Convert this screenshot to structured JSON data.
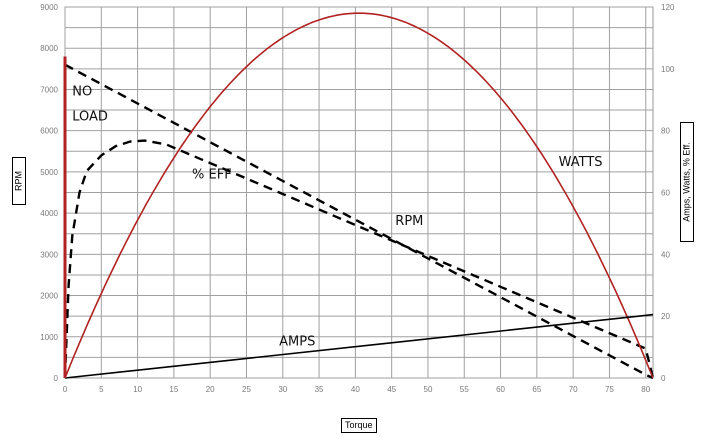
{
  "chart_data": {
    "type": "line",
    "xlabel": "Torque",
    "ylabel": "RPM",
    "y2label": "Amps, Watts, % Eff.",
    "xlim": [
      0,
      81
    ],
    "ylim": [
      0,
      9000
    ],
    "y2lim": [
      0,
      120
    ],
    "x_ticks": [
      "0",
      "5",
      "10",
      "15",
      "20",
      "25",
      "30",
      "35",
      "40",
      "45",
      "50",
      "55",
      "60",
      "65",
      "70",
      "75",
      "80"
    ],
    "y_ticks": [
      "0",
      "1000",
      "2000",
      "3000",
      "4000",
      "5000",
      "6000",
      "7000",
      "8000",
      "9000"
    ],
    "y2_ticks": [
      "0",
      "20",
      "40",
      "60",
      "80",
      "100",
      "120"
    ],
    "grid": true,
    "series": [
      {
        "name": "RPM",
        "axis": "left",
        "color": "#000000",
        "style": "dashed",
        "x": [
          0,
          10,
          20,
          30,
          40,
          50,
          60,
          70,
          80,
          81
        ],
        "y": [
          7600,
          6660,
          5720,
          4780,
          3840,
          2900,
          1960,
          1020,
          80,
          0
        ]
      },
      {
        "name": "% EFF",
        "axis": "right",
        "color": "#000000",
        "style": "dashed",
        "x": [
          0,
          0.5,
          1,
          2,
          3,
          5,
          7,
          9,
          11,
          14,
          17,
          20,
          30,
          40,
          50,
          60,
          70,
          80,
          81
        ],
        "y": [
          0,
          30,
          46,
          60,
          67,
          72,
          75,
          76.5,
          76.8,
          75.5,
          72.5,
          69.5,
          59.5,
          49.5,
          39.5,
          29.5,
          19.5,
          9.5,
          0
        ]
      },
      {
        "name": "WATTS",
        "axis": "right",
        "color": "#b22222",
        "style": "solid",
        "x": [
          0,
          5,
          10,
          15,
          20,
          25,
          30,
          35,
          40.5,
          45,
          50,
          55,
          60,
          65,
          70,
          75,
          81
        ],
        "y": [
          0,
          26.8,
          50.3,
          70.6,
          87.7,
          101.6,
          112.3,
          119.7,
          117.5,
          122.3,
          118.4,
          111.2,
          100.7,
          86.9,
          69.8,
          49.5,
          0
        ]
      },
      {
        "name": "AMPS",
        "axis": "right",
        "color": "#000000",
        "style": "solid",
        "x": [
          0,
          81
        ],
        "y": [
          0,
          20.5
        ]
      },
      {
        "name": "NO LOAD",
        "axis": "left",
        "color": "#b22222",
        "style": "solid",
        "x": [
          0,
          0
        ],
        "y": [
          0,
          7800
        ]
      }
    ],
    "annotations": [
      {
        "id": "noload1",
        "text": "NO",
        "x": 1,
        "y": 6850,
        "axis": "left"
      },
      {
        "id": "noload2",
        "text": "LOAD",
        "x": 1,
        "y": 6250,
        "axis": "left"
      },
      {
        "id": "eff",
        "text": "% EFF",
        "x": 17.5,
        "y": 64.5,
        "axis": "right"
      },
      {
        "id": "rpm",
        "text": "RPM",
        "x": 45.5,
        "y": 49.5,
        "axis": "right"
      },
      {
        "id": "watts",
        "text": "WATTS",
        "x": 68.0,
        "y": 68.5,
        "axis": "right"
      },
      {
        "id": "amps",
        "text": "AMPS",
        "x": 29.5,
        "y": 10.5,
        "axis": "right"
      }
    ]
  }
}
